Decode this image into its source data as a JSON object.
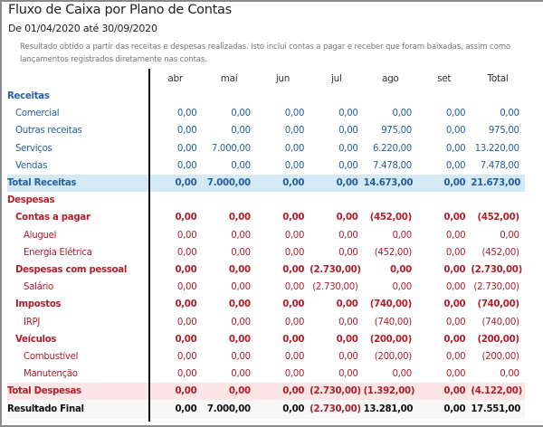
{
  "header": {
    "title": "Fluxo de Caixa por Plano de Contas",
    "period": "De 01/04/2020 até 30/09/2020",
    "note": "Resultado obtido a partir das receitas e despesas realizadas. Isto inclui contas a pagar e receber que foram baixadas, assim como lançamentos registrados diretamente nas contas."
  },
  "colors": {
    "receitas": "#2560a0",
    "despesas": "#b0202c",
    "total_receitas_bg": "#d4e9f4",
    "total_despesas_bg": "#fbe5e5"
  },
  "table": {
    "columns": [
      "abr",
      "mai",
      "jun",
      "jul",
      "ago",
      "set",
      "Total"
    ],
    "rows": [
      {
        "label": "Receitas",
        "type": "section",
        "group": "receitas",
        "values": []
      },
      {
        "label": "Comercial",
        "level": 1,
        "group": "receitas",
        "values": [
          "0,00",
          "0,00",
          "0,00",
          "0,00",
          "0,00",
          "0,00",
          "0,00"
        ]
      },
      {
        "label": "Outras receitas",
        "level": 1,
        "group": "receitas",
        "values": [
          "0,00",
          "0,00",
          "0,00",
          "0,00",
          "975,00",
          "0,00",
          "975,00"
        ]
      },
      {
        "label": "Serviços",
        "level": 1,
        "group": "receitas",
        "values": [
          "0,00",
          "7.000,00",
          "0,00",
          "0,00",
          "6.220,00",
          "0,00",
          "13.220,00"
        ]
      },
      {
        "label": "Vendas",
        "level": 1,
        "group": "receitas",
        "values": [
          "0,00",
          "0,00",
          "0,00",
          "0,00",
          "7.478,00",
          "0,00",
          "7.478,00"
        ]
      },
      {
        "label": "Total Receitas",
        "type": "total",
        "group": "receitas",
        "values": [
          "0,00",
          "7.000,00",
          "0,00",
          "0,00",
          "14.673,00",
          "0,00",
          "21.673,00"
        ]
      },
      {
        "label": "Despesas",
        "type": "section",
        "group": "despesas",
        "values": []
      },
      {
        "label": "Contas a pagar",
        "level": 1,
        "bold": true,
        "group": "despesas",
        "values": [
          "0,00",
          "0,00",
          "0,00",
          "0,00",
          "(452,00)",
          "0,00",
          "(452,00)"
        ]
      },
      {
        "label": "Aluguel",
        "level": 2,
        "group": "despesas",
        "values": [
          "0,00",
          "0,00",
          "0,00",
          "0,00",
          "0,00",
          "0,00",
          "0,00"
        ]
      },
      {
        "label": "Energia Elétrica",
        "level": 2,
        "group": "despesas",
        "values": [
          "0,00",
          "0,00",
          "0,00",
          "0,00",
          "(452,00)",
          "0,00",
          "(452,00)"
        ]
      },
      {
        "label": "Despesas com pessoal",
        "level": 1,
        "bold": true,
        "group": "despesas",
        "values": [
          "0,00",
          "0,00",
          "0,00",
          "(2.730,00)",
          "0,00",
          "0,00",
          "(2.730,00)"
        ]
      },
      {
        "label": "Salário",
        "level": 2,
        "group": "despesas",
        "values": [
          "0,00",
          "0,00",
          "0,00",
          "(2.730,00)",
          "0,00",
          "0,00",
          "(2.730,00)"
        ]
      },
      {
        "label": "Impostos",
        "level": 1,
        "bold": true,
        "group": "despesas",
        "values": [
          "0,00",
          "0,00",
          "0,00",
          "0,00",
          "(740,00)",
          "0,00",
          "(740,00)"
        ]
      },
      {
        "label": "IRPJ",
        "level": 2,
        "group": "despesas",
        "values": [
          "0,00",
          "0,00",
          "0,00",
          "0,00",
          "(740,00)",
          "0,00",
          "(740,00)"
        ]
      },
      {
        "label": "Veículos",
        "level": 1,
        "bold": true,
        "group": "despesas",
        "values": [
          "0,00",
          "0,00",
          "0,00",
          "0,00",
          "(200,00)",
          "0,00",
          "(200,00)"
        ]
      },
      {
        "label": "Combustível",
        "level": 2,
        "group": "despesas",
        "values": [
          "0,00",
          "0,00",
          "0,00",
          "0,00",
          "(200,00)",
          "0,00",
          "(200,00)"
        ]
      },
      {
        "label": "Manutenção",
        "level": 2,
        "group": "despesas",
        "values": [
          "0,00",
          "0,00",
          "0,00",
          "0,00",
          "0,00",
          "0,00",
          "0,00"
        ]
      },
      {
        "label": "Total Despesas",
        "type": "total",
        "group": "despesas",
        "values": [
          "0,00",
          "0,00",
          "0,00",
          "(2.730,00)",
          "(1.392,00)",
          "0,00",
          "(4.122,00)"
        ]
      },
      {
        "label": "Resultado Final",
        "type": "result",
        "group": "result",
        "values": [
          "0,00",
          "7.000,00",
          "0,00",
          "(2.730,00)",
          "13.281,00",
          "0,00",
          "17.551,00"
        ]
      }
    ]
  }
}
